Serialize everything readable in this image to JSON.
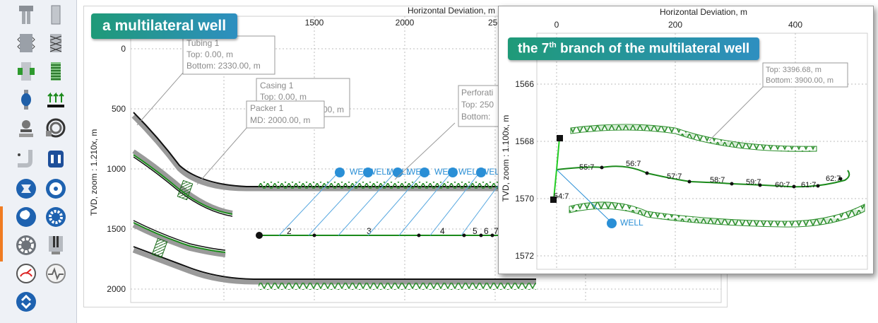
{
  "palette": {
    "tools": [
      "tubing-hanger-icon",
      "tubing-icon",
      "casing-icon",
      "screen-icon",
      "packer-icon",
      "coil-icon",
      "valve-icon",
      "perforation-icon",
      "pump-icon",
      "spool-icon",
      "elbow-icon",
      "drum-icon",
      "pump-station-icon",
      "fan-icon",
      "impeller-icon",
      "turbine-icon",
      "radial-fan-icon",
      "piston-icon",
      "gauge-icon",
      "pulse-icon",
      "expand-icon"
    ]
  },
  "main": {
    "banner": "a multilateral well",
    "x_axis_title": "Horizontal Deviation, m",
    "x_ticks": [
      "1500",
      "2000",
      "250"
    ],
    "y_axis_title": "TVD, zoom : 1.210x, m",
    "y_ticks": [
      "0",
      "500",
      "1000",
      "1500",
      "2000"
    ],
    "callouts": {
      "tubing": {
        "line1": "Tubing 1",
        "line2": "Top: 0.00, m",
        "line3": "Bottom: 2330.00, m"
      },
      "casing": {
        "line1": "Casing 1",
        "line2": "Top: 0.00, m",
        "line3": "00, m"
      },
      "packer": {
        "line1": "Packer 1",
        "line2": "MD: 2000.00, m"
      },
      "perforation": {
        "line1": "Perforati",
        "line2": "Top: 250",
        "line3": "Bottom:"
      }
    },
    "well_labels": [
      "WELL",
      "WELL",
      "WELL",
      "WELL",
      "WELL",
      "WELL",
      "WELL"
    ],
    "branch_nodes": [
      "2",
      "3",
      "4",
      "5",
      "6",
      "7"
    ]
  },
  "inset": {
    "banner_prefix": "the 7",
    "banner_sup": "th",
    "banner_suffix": " branch of the multilateral well",
    "x_axis_title": "Horizontal Deviation, m",
    "x_ticks": [
      "0",
      "200",
      "400"
    ],
    "y_axis_title": "TVD, zoom : 1.100x, m",
    "y_ticks": [
      "1566",
      "1568",
      "1570",
      "1572"
    ],
    "callout": {
      "line1": "Top: 3396.68, m",
      "line2": "Bottom: 3900.00, m"
    },
    "node_labels": [
      "54:7",
      "55:7",
      "56:7",
      "57:7",
      "58:7",
      "59:7",
      "60:7",
      "61:7",
      "62:7"
    ],
    "well_label": "WELL"
  },
  "colors": {
    "well_blue": "#2a8fd6",
    "branch_green": "#1b8a1b",
    "screen_green": "#3aa13a",
    "casing_gray": "#9a9a9a"
  }
}
